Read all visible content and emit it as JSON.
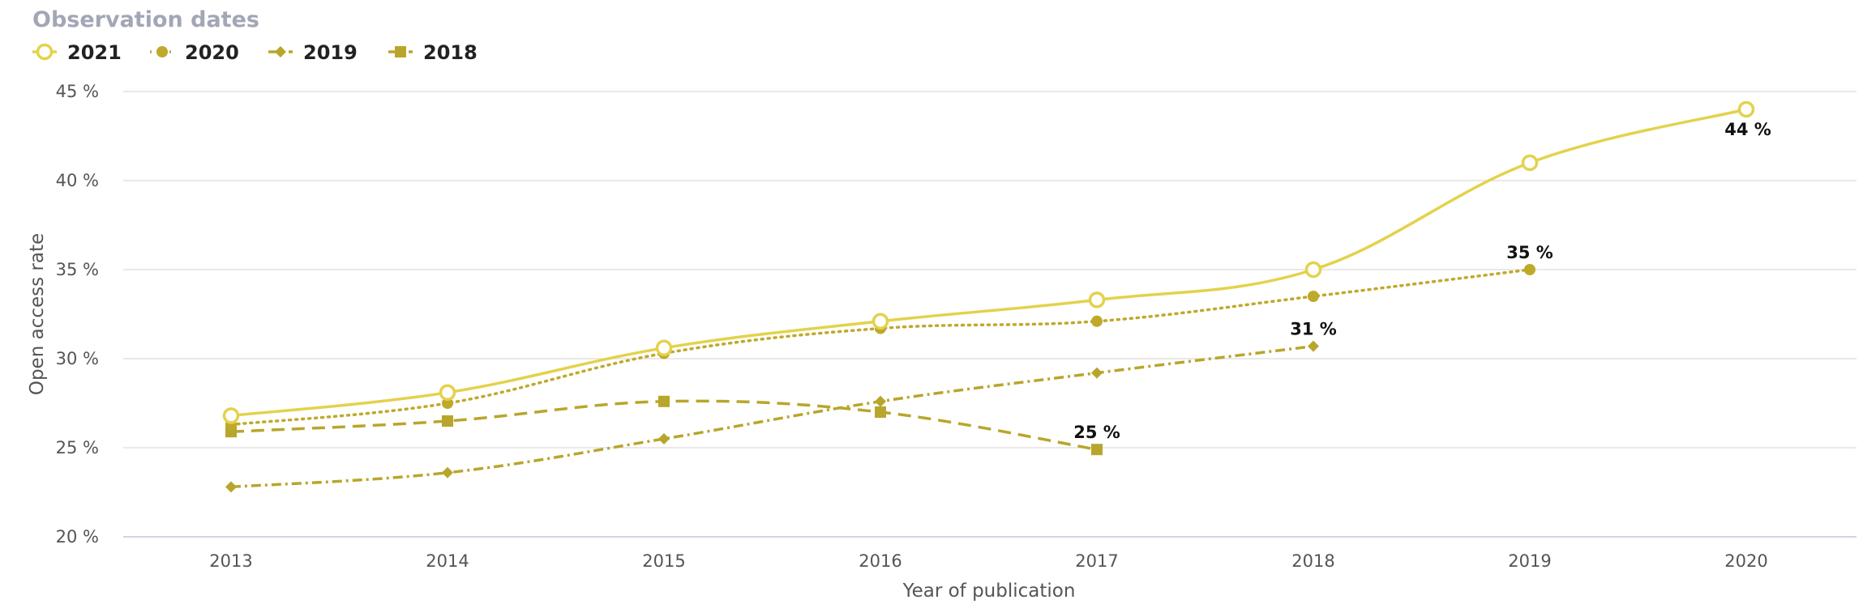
{
  "chart_data": {
    "type": "line",
    "legend_title": "Observation dates",
    "legend_position": "top-left",
    "xlabel": "Year of publication",
    "ylabel": "Open access rate",
    "categories": [
      "2013",
      "2014",
      "2015",
      "2016",
      "2017",
      "2018",
      "2019",
      "2020"
    ],
    "y_ticks": [
      "20 %",
      "25 %",
      "30 %",
      "35 %",
      "40 %",
      "45 %"
    ],
    "ylim": [
      20,
      45
    ],
    "grid": true,
    "series": [
      {
        "name": "2021",
        "color": "#e3d24c",
        "line_style": "solid",
        "marker": "open-circle",
        "values": [
          26.8,
          28.1,
          30.6,
          32.1,
          33.3,
          35.0,
          41.0,
          44.0
        ],
        "end_label": "44 %"
      },
      {
        "name": "2020",
        "color": "#bfa92b",
        "line_style": "dotted",
        "marker": "circle",
        "values": [
          26.3,
          27.5,
          30.3,
          31.7,
          32.1,
          33.5,
          35.0,
          null
        ],
        "end_label": "35 %"
      },
      {
        "name": "2019",
        "color": "#b8a62c",
        "line_style": "dash-dot",
        "marker": "diamond",
        "values": [
          22.8,
          23.6,
          25.5,
          27.6,
          29.2,
          30.7,
          null,
          null
        ],
        "end_label": "31 %"
      },
      {
        "name": "2018",
        "color": "#b8a62c",
        "line_style": "dashed",
        "marker": "square",
        "values": [
          25.9,
          26.5,
          27.6,
          27.0,
          24.9,
          null,
          null,
          null
        ],
        "end_label": "25 %"
      }
    ]
  }
}
